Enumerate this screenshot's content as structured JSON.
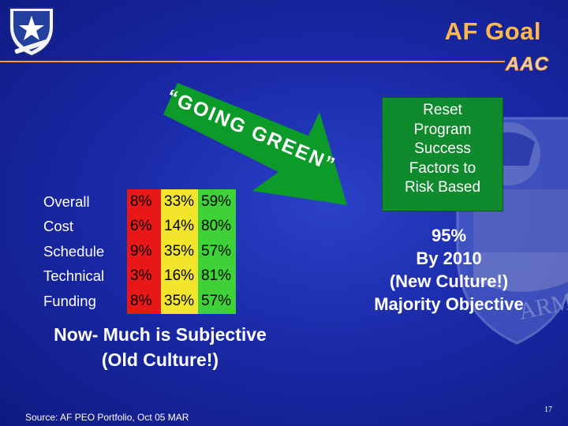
{
  "slide": {
    "title": "AF Goal",
    "brand": "AAC",
    "arrow_text": "“GOING GREEN”",
    "table": [
      {
        "label": "Overall",
        "red": "8%",
        "yellow": "33%",
        "green": "59%"
      },
      {
        "label": "Cost",
        "red": "6%",
        "yellow": "14%",
        "green": "80%"
      },
      {
        "label": "Schedule",
        "red": "9%",
        "yellow": "35%",
        "green": "57%"
      },
      {
        "label": "Technical",
        "red": "3%",
        "yellow": "16%",
        "green": "81%"
      },
      {
        "label": "Funding",
        "red": "8%",
        "yellow": "35%",
        "green": "57%"
      }
    ],
    "subjective_line1": "Now- Much is Subjective",
    "subjective_line2": "(Old Culture!)",
    "reset_lines": [
      "Reset",
      "Program",
      "Success",
      "Factors to",
      "Risk Based"
    ],
    "goal_lines": [
      "95%",
      "By 2010",
      "(New Culture!)",
      "Majority Objective"
    ],
    "source": "Source: AF PEO Portfolio, Oct 05 MAR",
    "page_number": "17"
  },
  "colors": {
    "background": "#1a2aa8",
    "title": "#ffb84a",
    "rule": "#ff9a1a",
    "red": "#e81818",
    "yellow": "#f2e52b",
    "green": "#3fd138",
    "reset_box": "#0f8a2c"
  },
  "icons": {
    "logo": "air-armament-center-shield-icon",
    "emblem": "armament-watermark-emblem-icon"
  }
}
